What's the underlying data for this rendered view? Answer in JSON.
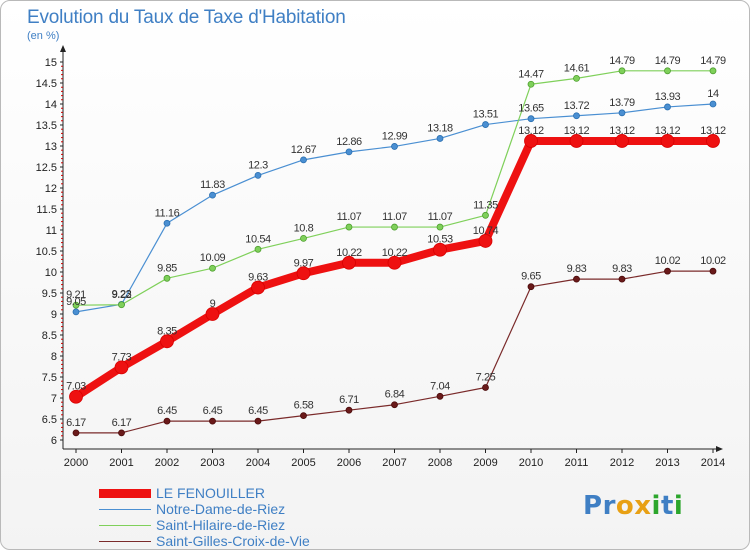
{
  "header": {
    "title": "Evolution du Taux de Taxe d'Habitation",
    "subtitle": "(en %)"
  },
  "logo": {
    "text": "Proxiti",
    "letter_colors": [
      "#3f7fc4",
      "#3f7fc4",
      "#e8a014",
      "#e8a014",
      "#2ca62c",
      "#3f7fc4",
      "#2ca62c"
    ]
  },
  "chart_data": {
    "type": "line",
    "title": "Evolution du Taux de Taxe d'Habitation",
    "subtitle": "(en %)",
    "xlabel": "",
    "ylabel": "(en %)",
    "x": [
      "2000",
      "2001",
      "2002",
      "2003",
      "2004",
      "2005",
      "2006",
      "2007",
      "2008",
      "2009",
      "2010",
      "2011",
      "2012",
      "2013",
      "2014"
    ],
    "ylim": [
      6,
      15
    ],
    "yticks": [
      "6",
      "6.5",
      "7",
      "7.5",
      "8",
      "8.5",
      "9",
      "9.5",
      "10",
      "10.5",
      "11",
      "11.5",
      "12",
      "12.5",
      "13",
      "13.5",
      "14",
      "14.5",
      "15"
    ],
    "grid": false,
    "legend_position": "bottom-left",
    "series": [
      {
        "name": "Notre-Dame-de-Riez",
        "color": "#4a8fd2",
        "values": [
          9.05,
          9.23,
          11.16,
          11.83,
          12.3,
          12.67,
          12.86,
          12.99,
          13.18,
          13.51,
          13.65,
          13.72,
          13.79,
          13.93,
          14
        ],
        "labels": [
          "9.05",
          "9.23",
          "11.16",
          "11.83",
          "12.3",
          "12.67",
          "12.86",
          "12.99",
          "13.18",
          "13.51",
          "13.65",
          "13.72",
          "13.79",
          "13.93",
          "14"
        ]
      },
      {
        "name": "Saint-Hilaire-de-Riez",
        "color": "#7fd05a",
        "values": [
          9.21,
          9.22,
          9.85,
          10.09,
          10.54,
          10.8,
          11.07,
          11.07,
          11.07,
          11.35,
          14.47,
          14.61,
          14.79,
          14.79,
          14.79
        ],
        "labels": [
          "9.21",
          "9.22",
          "9.85",
          "10.09",
          "10.54",
          "10.8",
          "11.07",
          "11.07",
          "11.07",
          "11.35",
          "14.47",
          "14.61",
          "14.79",
          "14.79",
          "14.79"
        ]
      },
      {
        "name": "Saint-Gilles-Croix-de-Vie",
        "color": "#7a2a2a",
        "values": [
          6.17,
          6.17,
          6.45,
          6.45,
          6.45,
          6.58,
          6.71,
          6.84,
          7.04,
          7.25,
          9.65,
          9.83,
          9.83,
          10.02,
          10.02
        ],
        "labels": [
          "6.17",
          "6.17",
          "6.45",
          "6.45",
          "6.45",
          "6.58",
          "6.71",
          "6.84",
          "7.04",
          "7.25",
          "9.65",
          "9.83",
          "9.83",
          "10.02",
          "10.02"
        ]
      },
      {
        "name": "LE FENOUILLER",
        "color": "#ee1111",
        "values": [
          7.03,
          7.73,
          8.35,
          9,
          9.63,
          9.97,
          10.22,
          10.22,
          10.53,
          10.74,
          13.12,
          13.12,
          13.12,
          13.12,
          13.12
        ],
        "labels": [
          "7.03",
          "7.73",
          "8.35",
          "9",
          "9.63",
          "9.97",
          "10.22",
          "10.22",
          "10.53",
          "10.74",
          "13.12",
          "13.12",
          "13.12",
          "13.12",
          "13.12"
        ]
      }
    ],
    "legend": [
      "LE FENOUILLER",
      "Notre-Dame-de-Riez",
      "Saint-Hilaire-de-Riez",
      "Saint-Gilles-Croix-de-Vie"
    ]
  }
}
